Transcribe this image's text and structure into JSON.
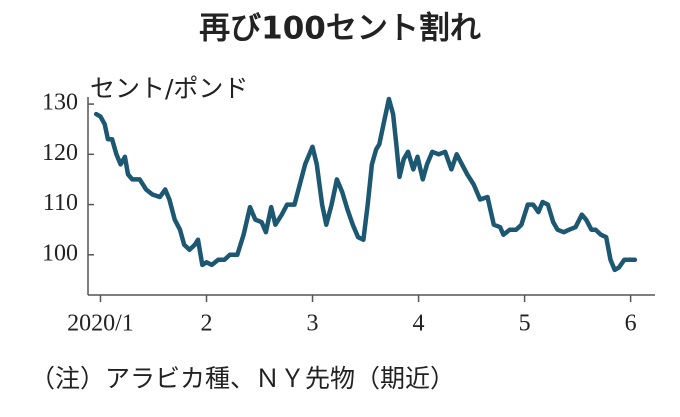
{
  "chart_data": {
    "type": "line",
    "title": "再び100セント割れ",
    "y_label": "セント/ポンド",
    "note": "（注）アラビカ種、ＮＹ先物（期近）",
    "xlim": [
      0.92,
      6.23
    ],
    "xticks": [
      {
        "value": 1,
        "label": "2020/1"
      },
      2,
      3,
      4,
      5,
      6
    ],
    "ylim": [
      92,
      133
    ],
    "yticks": [
      100,
      110,
      120,
      130
    ],
    "series": [
      {
        "name": "アラビカ種",
        "color": "#1d5873",
        "x": [
          0.96,
          1.0,
          1.04,
          1.07,
          1.11,
          1.15,
          1.19,
          1.23,
          1.26,
          1.3,
          1.37,
          1.43,
          1.49,
          1.56,
          1.61,
          1.65,
          1.7,
          1.75,
          1.79,
          1.84,
          1.89,
          1.92,
          1.96,
          2.0,
          2.05,
          2.11,
          2.17,
          2.22,
          2.29,
          2.35,
          2.41,
          2.46,
          2.52,
          2.56,
          2.61,
          2.65,
          2.71,
          2.76,
          2.83,
          2.88,
          2.93,
          3.0,
          3.04,
          3.09,
          3.13,
          3.18,
          3.23,
          3.28,
          3.33,
          3.38,
          3.43,
          3.48,
          3.52,
          3.56,
          3.6,
          3.63,
          3.68,
          3.72,
          3.76,
          3.79,
          3.82,
          3.86,
          3.9,
          3.95,
          3.99,
          4.04,
          4.08,
          4.13,
          4.19,
          4.25,
          4.31,
          4.36,
          4.41,
          4.46,
          4.52,
          4.58,
          4.65,
          4.71,
          4.77,
          4.8,
          4.86,
          4.92,
          4.97,
          5.03,
          5.08,
          5.13,
          5.17,
          5.22,
          5.27,
          5.31,
          5.37,
          5.42,
          5.48,
          5.54,
          5.58,
          5.63,
          5.67,
          5.72,
          5.77,
          5.81,
          5.85,
          5.89,
          5.94,
          6.04
        ],
        "values": [
          128,
          127.5,
          126,
          123,
          123,
          120,
          118,
          119.5,
          116,
          115,
          115,
          113,
          112,
          111.5,
          113,
          111,
          107,
          105,
          102,
          101,
          102,
          103,
          98,
          98.5,
          98,
          99,
          99,
          100,
          100,
          104,
          109.5,
          107,
          106.5,
          104.5,
          109.5,
          106,
          108,
          110,
          110,
          114,
          118,
          121.5,
          118,
          110,
          106,
          110,
          115,
          112.5,
          109,
          106,
          103.5,
          103,
          110,
          118,
          121,
          122,
          127,
          131,
          128,
          122,
          115.5,
          119,
          120.5,
          117,
          119.5,
          115,
          118,
          120.5,
          120,
          120.5,
          117,
          120,
          118,
          116,
          114,
          111,
          111.5,
          106,
          105.5,
          104,
          105,
          105,
          106,
          110,
          110,
          108.5,
          110.5,
          110,
          106.5,
          105,
          104.5,
          105,
          105.5,
          108,
          107,
          105,
          105,
          104,
          103.5,
          99,
          97,
          97.5,
          99,
          99
        ]
      }
    ]
  }
}
